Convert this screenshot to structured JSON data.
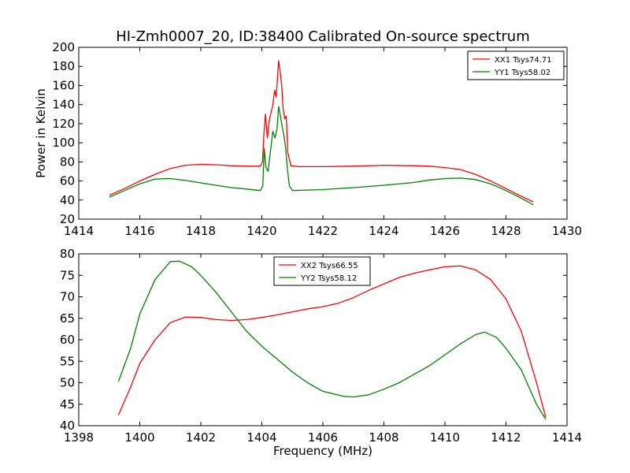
{
  "figure": {
    "title": "HI-Zmh0007_20, ID:38400 Calibrated On-source spectrum"
  },
  "chart_data": [
    {
      "type": "line",
      "ylabel": "Power in Kelvin",
      "xlabel": "",
      "xlim": [
        1414,
        1430
      ],
      "ylim": [
        20,
        200
      ],
      "xticks": [
        1414,
        1416,
        1418,
        1420,
        1422,
        1424,
        1426,
        1428,
        1430
      ],
      "yticks": [
        20,
        40,
        60,
        80,
        100,
        120,
        140,
        160,
        180,
        200
      ],
      "grid": false,
      "legend_position": "top-right",
      "series": [
        {
          "name": "XX1 Tsys74.71",
          "color": "#ff0000",
          "points": [
            [
              1415,
              45
            ],
            [
              1415.5,
              52
            ],
            [
              1416,
              60
            ],
            [
              1416.5,
              67
            ],
            [
              1417,
              73
            ],
            [
              1417.5,
              76.5
            ],
            [
              1418,
              77.5
            ],
            [
              1418.5,
              77
            ],
            [
              1419,
              76
            ],
            [
              1419.5,
              75.5
            ],
            [
              1419.95,
              75.5
            ],
            [
              1420.02,
              80
            ],
            [
              1420.07,
              110
            ],
            [
              1420.12,
              130
            ],
            [
              1420.18,
              105
            ],
            [
              1420.25,
              125
            ],
            [
              1420.35,
              138
            ],
            [
              1420.42,
              155
            ],
            [
              1420.47,
              148
            ],
            [
              1420.55,
              186
            ],
            [
              1420.6,
              175
            ],
            [
              1420.65,
              160
            ],
            [
              1420.7,
              135
            ],
            [
              1420.75,
              125
            ],
            [
              1420.8,
              128
            ],
            [
              1420.85,
              90
            ],
            [
              1420.95,
              76
            ],
            [
              1421.2,
              75
            ],
            [
              1422,
              75
            ],
            [
              1423,
              75.5
            ],
            [
              1424,
              76.5
            ],
            [
              1425,
              76
            ],
            [
              1425.5,
              75.5
            ],
            [
              1426,
              74
            ],
            [
              1426.5,
              72
            ],
            [
              1427,
              67
            ],
            [
              1427.5,
              60
            ],
            [
              1428,
              52
            ],
            [
              1428.5,
              44
            ],
            [
              1428.9,
              38
            ]
          ]
        },
        {
          "name": "YY1 Tsys58.02",
          "color": "#008000",
          "points": [
            [
              1415,
              43
            ],
            [
              1415.5,
              50
            ],
            [
              1416,
              57
            ],
            [
              1416.5,
              62
            ],
            [
              1417,
              62.5
            ],
            [
              1417.5,
              60.5
            ],
            [
              1418,
              58
            ],
            [
              1418.5,
              55.5
            ],
            [
              1419,
              53
            ],
            [
              1419.5,
              51.5
            ],
            [
              1419.95,
              50
            ],
            [
              1420.03,
              55
            ],
            [
              1420.08,
              94
            ],
            [
              1420.13,
              75
            ],
            [
              1420.2,
              70
            ],
            [
              1420.28,
              90
            ],
            [
              1420.36,
              112
            ],
            [
              1420.43,
              105
            ],
            [
              1420.5,
              115
            ],
            [
              1420.55,
              138
            ],
            [
              1420.6,
              130
            ],
            [
              1420.65,
              120
            ],
            [
              1420.72,
              108
            ],
            [
              1420.78,
              95
            ],
            [
              1420.83,
              75
            ],
            [
              1420.9,
              55
            ],
            [
              1421,
              50
            ],
            [
              1422,
              51
            ],
            [
              1423,
              53
            ],
            [
              1424,
              55.5
            ],
            [
              1425,
              58.5
            ],
            [
              1425.5,
              61
            ],
            [
              1426,
              62.5
            ],
            [
              1426.5,
              63
            ],
            [
              1427,
              61.5
            ],
            [
              1427.5,
              57
            ],
            [
              1428,
              50
            ],
            [
              1428.5,
              42
            ],
            [
              1428.9,
              35
            ]
          ]
        }
      ]
    },
    {
      "type": "line",
      "xlabel": "Frequency (MHz)",
      "ylabel": "",
      "xlim": [
        1398,
        1414
      ],
      "ylim": [
        40,
        80
      ],
      "xticks": [
        1398,
        1400,
        1402,
        1404,
        1406,
        1408,
        1410,
        1412,
        1414
      ],
      "yticks": [
        40,
        45,
        50,
        55,
        60,
        65,
        70,
        75,
        80
      ],
      "grid": false,
      "legend_position": "top-center",
      "series": [
        {
          "name": "XX2 Tsys66.55",
          "color": "#ff0000",
          "points": [
            [
              1399.3,
              42.5
            ],
            [
              1399.7,
              49
            ],
            [
              1400,
              54.5
            ],
            [
              1400.5,
              60
            ],
            [
              1401,
              64
            ],
            [
              1401.5,
              65.3
            ],
            [
              1402,
              65.2
            ],
            [
              1402.5,
              64.7
            ],
            [
              1403,
              64.5
            ],
            [
              1403.5,
              64.7
            ],
            [
              1404,
              65.2
            ],
            [
              1404.5,
              65.8
            ],
            [
              1405,
              66.5
            ],
            [
              1405.5,
              67.2
            ],
            [
              1406,
              67.7
            ],
            [
              1406.5,
              68.5
            ],
            [
              1407,
              69.8
            ],
            [
              1407.5,
              71.5
            ],
            [
              1408,
              73
            ],
            [
              1408.5,
              74.5
            ],
            [
              1409,
              75.5
            ],
            [
              1409.5,
              76.3
            ],
            [
              1410,
              77
            ],
            [
              1410.5,
              77.2
            ],
            [
              1411,
              76.3
            ],
            [
              1411.5,
              74
            ],
            [
              1412,
              69.5
            ],
            [
              1412.5,
              62
            ],
            [
              1413,
              50
            ],
            [
              1413.3,
              42
            ]
          ]
        },
        {
          "name": "YY2 Tsys58.12",
          "color": "#008000",
          "points": [
            [
              1399.3,
              50.3
            ],
            [
              1399.7,
              58
            ],
            [
              1400,
              66
            ],
            [
              1400.5,
              74
            ],
            [
              1401,
              78.2
            ],
            [
              1401.3,
              78.3
            ],
            [
              1401.7,
              77
            ],
            [
              1402,
              75
            ],
            [
              1402.5,
              71
            ],
            [
              1403,
              66.5
            ],
            [
              1403.5,
              62
            ],
            [
              1404,
              58.5
            ],
            [
              1404.5,
              55.5
            ],
            [
              1405,
              52.5
            ],
            [
              1405.5,
              50
            ],
            [
              1406,
              48
            ],
            [
              1406.3,
              47.5
            ],
            [
              1406.7,
              46.8
            ],
            [
              1407,
              46.7
            ],
            [
              1407.5,
              47.2
            ],
            [
              1408,
              48.5
            ],
            [
              1408.5,
              50
            ],
            [
              1409,
              52
            ],
            [
              1409.5,
              54
            ],
            [
              1410,
              56.5
            ],
            [
              1410.5,
              59
            ],
            [
              1411,
              61.2
            ],
            [
              1411.3,
              61.8
            ],
            [
              1411.7,
              60.5
            ],
            [
              1412,
              58
            ],
            [
              1412.5,
              53
            ],
            [
              1413,
              45
            ],
            [
              1413.3,
              41.5
            ]
          ]
        }
      ]
    }
  ]
}
